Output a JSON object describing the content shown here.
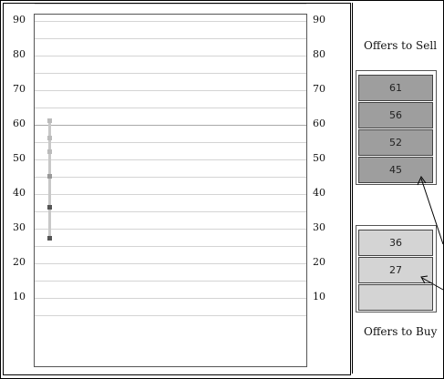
{
  "chart": {
    "y_ticks": [
      "90",
      "80",
      "70",
      "60",
      "50",
      "40",
      "30",
      "20",
      "10"
    ]
  },
  "offers_to_sell": {
    "heading": "Offers to Sell",
    "items": [
      "61",
      "56",
      "52",
      "45"
    ]
  },
  "offers_to_buy": {
    "heading": "Offers to Buy",
    "items": [
      "36",
      "27",
      ""
    ]
  },
  "colors": {
    "sell_box": "#9e9e9e",
    "buy_box": "#d4d4d4"
  },
  "icons": [
    "arrow-to-sell-offer-icon",
    "arrow-to-buy-offer-icon"
  ]
}
